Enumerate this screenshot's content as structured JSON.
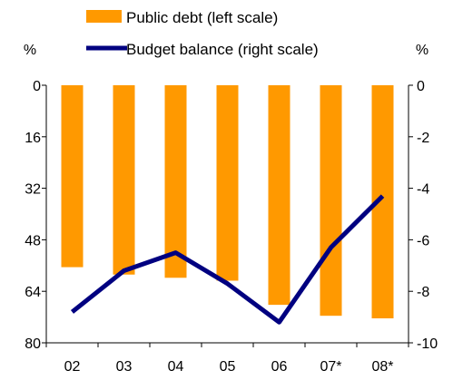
{
  "chart_data": {
    "type": "bar+line",
    "categories": [
      "02",
      "03",
      "04",
      "05",
      "06",
      "07*",
      "08*"
    ],
    "series": [
      {
        "name": "Public debt (left scale)",
        "type": "bar",
        "axis": "left",
        "color": "#FF9900",
        "values": [
          56.5,
          58.8,
          59.8,
          60.7,
          68.2,
          71.6,
          72.4
        ]
      },
      {
        "name": "Budget balance (right scale)",
        "type": "line",
        "axis": "right",
        "color": "#000080",
        "values": [
          -8.8,
          -7.2,
          -6.5,
          -7.7,
          -9.2,
          -6.3,
          -4.3
        ]
      }
    ],
    "left_axis": {
      "unit": "%",
      "min": 0,
      "max": 80,
      "inverted": true,
      "ticks": [
        "0",
        "16",
        "32",
        "48",
        "64",
        "80"
      ]
    },
    "right_axis": {
      "unit": "%",
      "min": -10,
      "max": 0,
      "ticks": [
        "0",
        "-2",
        "-4",
        "-6",
        "-8",
        "-10"
      ]
    },
    "grid": false,
    "legend_position": "top"
  }
}
